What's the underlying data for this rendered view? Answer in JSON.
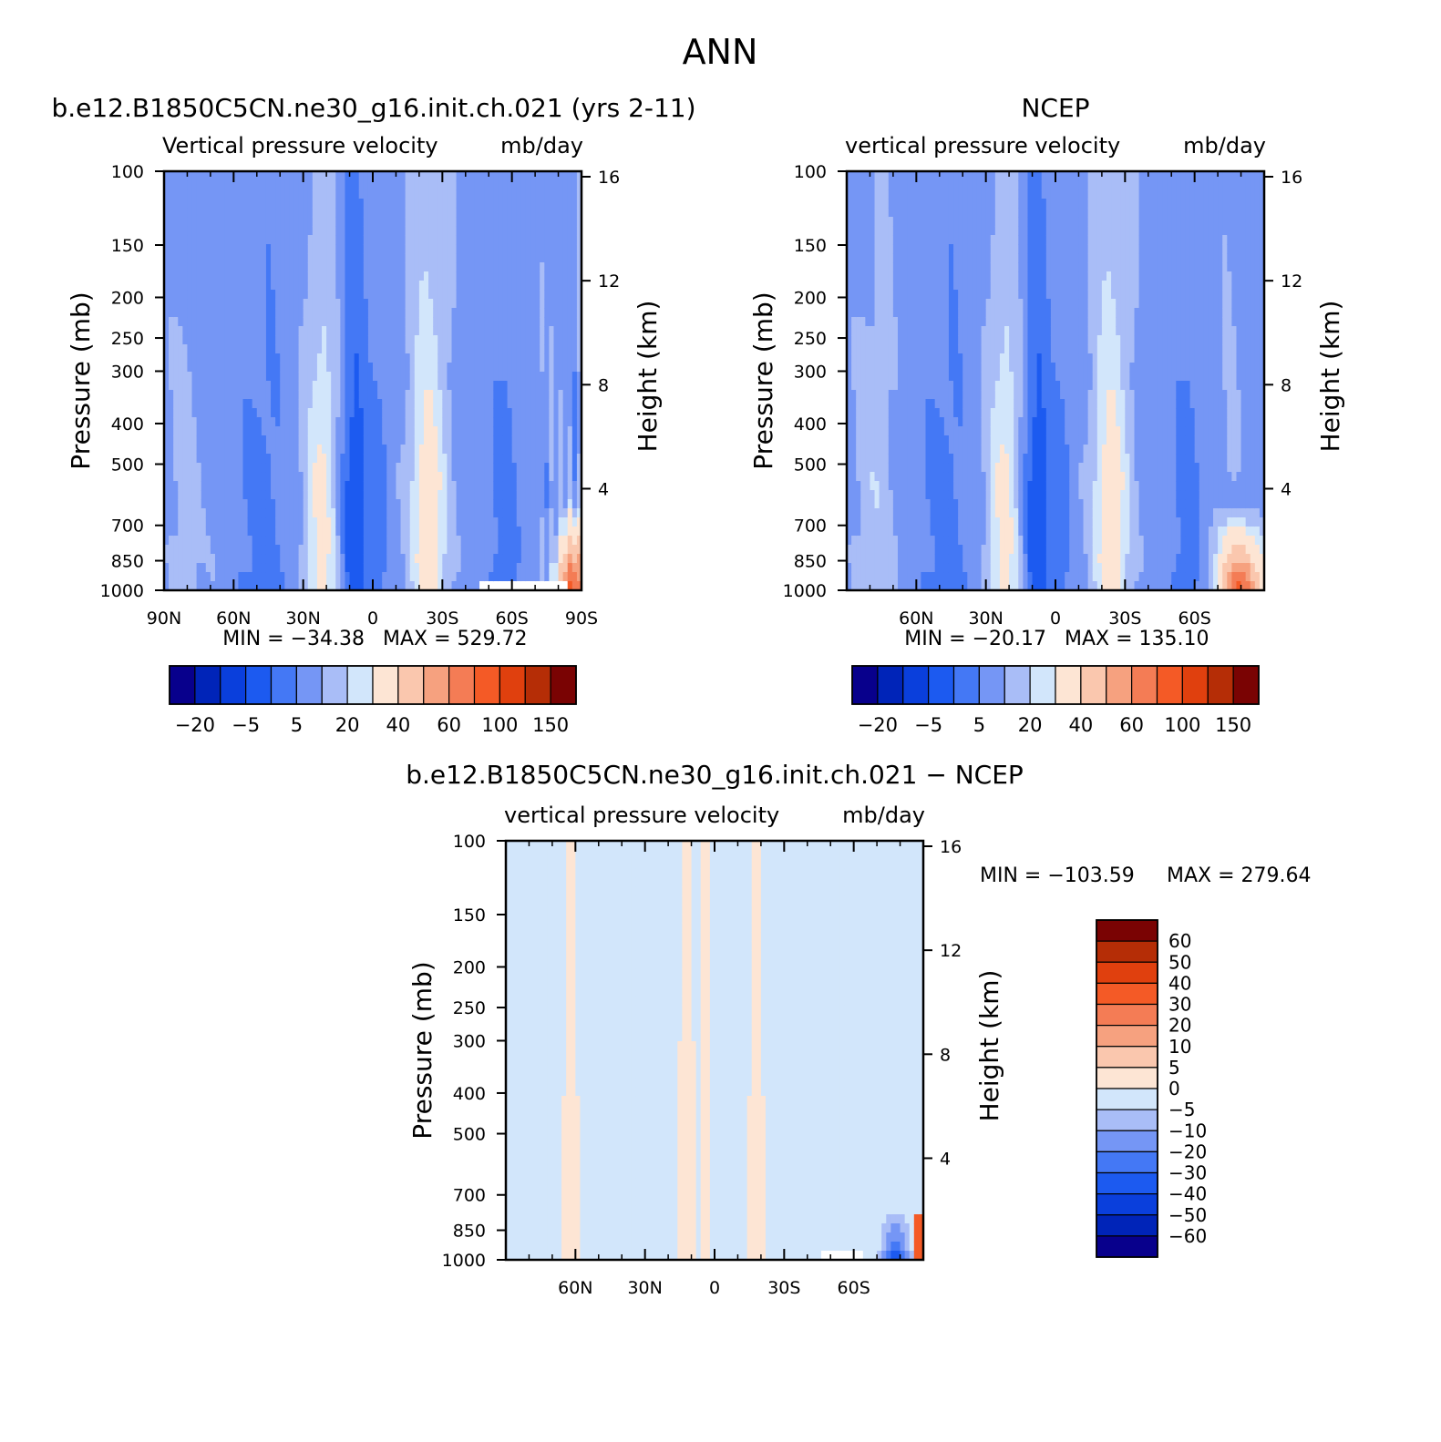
{
  "figure": {
    "title": "ANN"
  },
  "colors": {
    "abs_palette": [
      "#08008c",
      "#0024b8",
      "#0a3fdc",
      "#1c5af0",
      "#4478f5",
      "#7596f5",
      "#a9bdf7",
      "#d2e6fb",
      "#fde5d4",
      "#fac7ae",
      "#f6a17f",
      "#f47c55",
      "#f45a26",
      "#e0400e",
      "#b52d06",
      "#7a0303"
    ],
    "diff_palette": [
      "#08008c",
      "#0024b8",
      "#0a3fdc",
      "#1c5af0",
      "#4478f5",
      "#7596f5",
      "#a9bdf7",
      "#d2e6fb",
      "#fde5d4",
      "#fac7ae",
      "#f6a17f",
      "#f47c55",
      "#f45a26",
      "#e0400e",
      "#b52d06",
      "#7a0303"
    ],
    "missing": "#ffffff"
  },
  "chart_data": [
    {
      "id": "model",
      "type": "heatmap",
      "title": "b.e12.B1850C5CN.ne30_g16.init.ch.021 (yrs 2-11)",
      "variable_label": "Vertical pressure velocity",
      "units": "mb/day",
      "ylabel": "Pressure (mb)",
      "ylabel_right": "Height (km)",
      "x_ticks": [
        {
          "lat": 90,
          "label": "90N"
        },
        {
          "lat": 60,
          "label": "60N"
        },
        {
          "lat": 30,
          "label": "30N"
        },
        {
          "lat": 0,
          "label": "0"
        },
        {
          "lat": -30,
          "label": "30S"
        },
        {
          "lat": -60,
          "label": "60S"
        },
        {
          "lat": -90,
          "label": "90S"
        }
      ],
      "xlim": [
        90,
        -90
      ],
      "y_ticks": [
        100,
        150,
        200,
        250,
        300,
        400,
        500,
        700,
        850,
        1000
      ],
      "ylim": [
        100,
        1000
      ],
      "y_scale": "log",
      "height_ticks": [
        4,
        8,
        12,
        16
      ],
      "min_text": "MIN = −34.38",
      "max_text": "MAX = 529.72",
      "min": -34.38,
      "max": 529.72,
      "colorbar": {
        "orientation": "horizontal",
        "labels": [
          "−20",
          "−5",
          "5",
          "20",
          "40",
          "60",
          "100",
          "150"
        ]
      }
    },
    {
      "id": "obs",
      "type": "heatmap",
      "title": "NCEP",
      "variable_label": "vertical pressure velocity",
      "units": "mb/day",
      "ylabel": "Pressure (mb)",
      "ylabel_right": "Height (km)",
      "x_ticks": [
        {
          "lat": 60,
          "label": "60N"
        },
        {
          "lat": 30,
          "label": "30N"
        },
        {
          "lat": 0,
          "label": "0"
        },
        {
          "lat": -30,
          "label": "30S"
        },
        {
          "lat": -60,
          "label": "60S"
        }
      ],
      "xlim": [
        90,
        -90
      ],
      "y_ticks": [
        100,
        150,
        200,
        250,
        300,
        400,
        500,
        700,
        850,
        1000
      ],
      "ylim": [
        100,
        1000
      ],
      "y_scale": "log",
      "height_ticks": [
        4,
        8,
        12,
        16
      ],
      "min_text": "MIN = −20.17",
      "max_text": "MAX = 135.10",
      "min": -20.17,
      "max": 135.1,
      "colorbar": {
        "orientation": "horizontal",
        "labels": [
          "−20",
          "−5",
          "5",
          "20",
          "40",
          "60",
          "100",
          "150"
        ]
      }
    },
    {
      "id": "diff",
      "type": "heatmap",
      "title": "b.e12.B1850C5CN.ne30_g16.init.ch.021 − NCEP",
      "variable_label": "vertical pressure velocity",
      "units": "mb/day",
      "ylabel": "Pressure (mb)",
      "ylabel_right": "Height (km)",
      "x_ticks": [
        {
          "lat": 60,
          "label": "60N"
        },
        {
          "lat": 30,
          "label": "30N"
        },
        {
          "lat": 0,
          "label": "0"
        },
        {
          "lat": -30,
          "label": "30S"
        },
        {
          "lat": -60,
          "label": "60S"
        }
      ],
      "xlim": [
        90,
        -90
      ],
      "y_ticks": [
        100,
        150,
        200,
        250,
        300,
        400,
        500,
        700,
        850,
        1000
      ],
      "ylim": [
        100,
        1000
      ],
      "y_scale": "log",
      "height_ticks": [
        4,
        8,
        12,
        16
      ],
      "min_text": "MIN = −103.59",
      "max_text": "MAX = 279.64",
      "min": -103.59,
      "max": 279.64,
      "colorbar": {
        "orientation": "vertical",
        "labels": [
          "60",
          "50",
          "40",
          "30",
          "20",
          "10",
          "5",
          "0",
          "−5",
          "−10",
          "−20",
          "−30",
          "−40",
          "−50",
          "−60"
        ]
      }
    }
  ]
}
